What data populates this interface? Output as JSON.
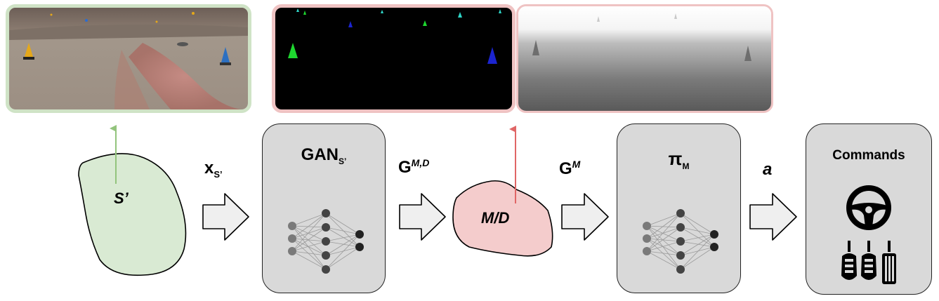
{
  "diagram": {
    "source_domain_label": "S’",
    "input_label": {
      "base": "x",
      "sub": "S’"
    },
    "gan_box": {
      "title": "GAN",
      "title_sub": "S’"
    },
    "gan_output_label": {
      "base": "G",
      "sup": "M,D"
    },
    "intermediate_domain_label": "M/D",
    "policy_input_label": {
      "base": "G",
      "sup": "M"
    },
    "policy_box": {
      "title": "π",
      "title_sub": "M"
    },
    "action_label": "a",
    "commands_box": {
      "title": "Commands"
    },
    "colors": {
      "green_fill": "#d9ead3",
      "green_border": "#cfe3c6",
      "green_arrow": "#93c47d",
      "pink_fill": "#f4cccc",
      "pink_border": "#efc3c3",
      "pink_arrow": "#e06666",
      "box_fill": "#d9d9d9",
      "arrow_fill": "#efefef"
    },
    "icons": [
      "steering-wheel-icon",
      "pedals-icon",
      "neural-network-icon"
    ]
  }
}
